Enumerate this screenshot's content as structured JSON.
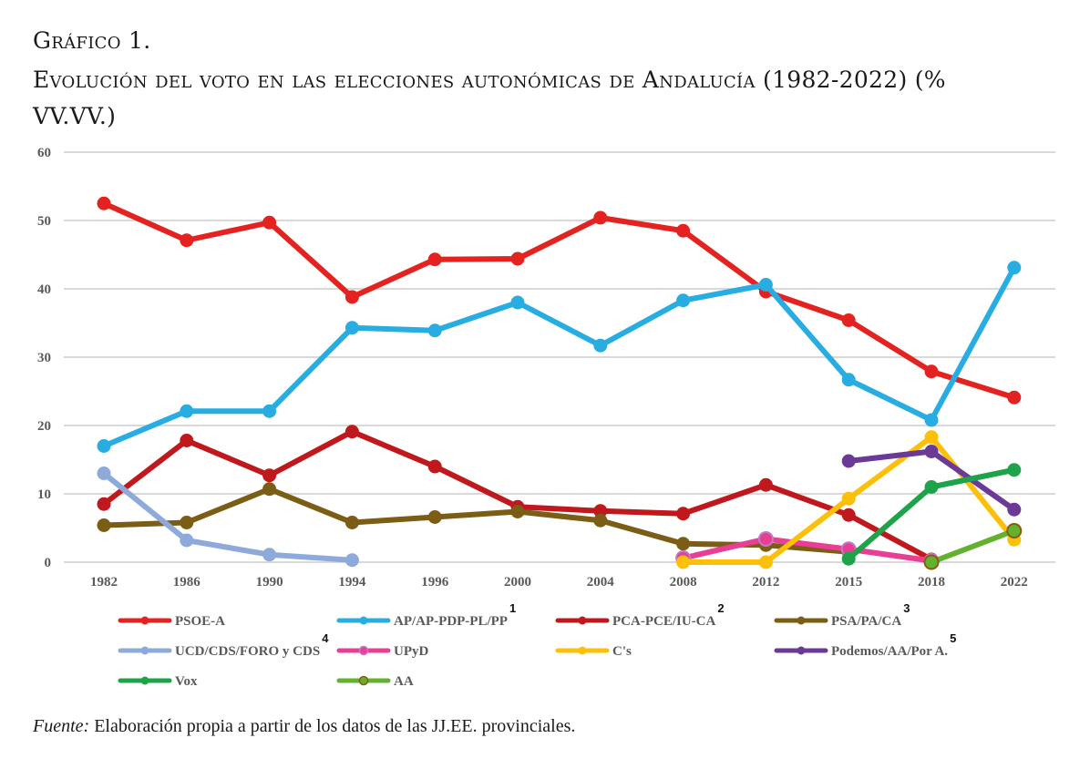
{
  "caption": {
    "number": "Gráfico 1.",
    "title": "Evolución del voto en las elecciones autonómicas de Andalucía (1982-2022) (% VV.VV.)"
  },
  "source": {
    "label": "Fuente:",
    "text": " Elaboración propia a partir de los datos de las JJ.EE. provinciales."
  },
  "chart_data": {
    "type": "line",
    "title": "Evolución del voto en las elecciones autonómicas de Andalucía (1982-2022) (% VV.VV.)",
    "xlabel": "",
    "ylabel": "% VV.VV.",
    "ylim": [
      0,
      60
    ],
    "yticks": [
      0,
      10,
      20,
      30,
      40,
      50,
      60
    ],
    "grid": true,
    "legend_position": "bottom",
    "categories": [
      "1982",
      "1986",
      "1990",
      "1994",
      "1996",
      "2000",
      "2004",
      "2008",
      "2012",
      "2015",
      "2018",
      "2022"
    ],
    "series": [
      {
        "name": "PSOE-A",
        "sup": "",
        "color": "#e42320",
        "marker_stroke": "",
        "values": [
          52.5,
          47.1,
          49.7,
          38.8,
          44.3,
          44.4,
          50.4,
          48.5,
          39.6,
          35.4,
          27.9,
          24.1
        ]
      },
      {
        "name": "AP/AP-PDP-PL/PP",
        "sup": "1",
        "color": "#28ade3",
        "marker_stroke": "",
        "values": [
          17.0,
          22.1,
          22.1,
          34.3,
          33.9,
          38.0,
          31.7,
          38.3,
          40.6,
          26.7,
          20.8,
          43.1
        ]
      },
      {
        "name": "PCA-PCE/IU-CA",
        "sup": "2",
        "color": "#c0181c",
        "marker_stroke": "",
        "values": [
          8.5,
          17.8,
          12.7,
          19.1,
          14.0,
          8.1,
          7.5,
          7.1,
          11.3,
          6.9,
          0.4,
          null
        ]
      },
      {
        "name": "PSA/PA/CA",
        "sup": "3",
        "color": "#7b5d16",
        "marker_stroke": "",
        "values": [
          5.4,
          5.8,
          10.7,
          5.8,
          6.6,
          7.4,
          6.1,
          2.7,
          2.5,
          1.5,
          null,
          null
        ]
      },
      {
        "name": "UCD/CDS/FORO y CDS",
        "sup": "4",
        "color": "#8eaadb",
        "marker_stroke": "",
        "values": [
          13.0,
          3.2,
          1.1,
          0.3,
          null,
          null,
          null,
          null,
          null,
          null,
          null,
          null
        ]
      },
      {
        "name": "UPyD",
        "sup": "",
        "color": "#e83e94",
        "marker_stroke": "#c17bc4",
        "values": [
          null,
          null,
          null,
          null,
          null,
          null,
          null,
          0.6,
          3.4,
          1.9,
          0.2,
          null
        ]
      },
      {
        "name": "C's",
        "sup": "",
        "color": "#fcbf0a",
        "marker_stroke": "",
        "values": [
          null,
          null,
          null,
          null,
          null,
          null,
          null,
          0.0,
          0.0,
          9.3,
          18.3,
          3.3
        ]
      },
      {
        "name": "Podemos/AA/Por A.",
        "sup": "5",
        "color": "#6a3a96",
        "marker_stroke": "",
        "values": [
          null,
          null,
          null,
          null,
          null,
          null,
          null,
          null,
          null,
          14.8,
          16.2,
          7.7
        ]
      },
      {
        "name": "Vox",
        "sup": "",
        "color": "#1fa34a",
        "marker_stroke": "",
        "values": [
          null,
          null,
          null,
          null,
          null,
          null,
          null,
          null,
          null,
          0.5,
          11.0,
          13.5
        ]
      },
      {
        "name": "AA",
        "sup": "",
        "color": "#62b22f",
        "marker_stroke": "#8b5a14",
        "values": [
          null,
          null,
          null,
          null,
          null,
          null,
          null,
          null,
          null,
          null,
          0.0,
          4.6
        ]
      }
    ]
  }
}
